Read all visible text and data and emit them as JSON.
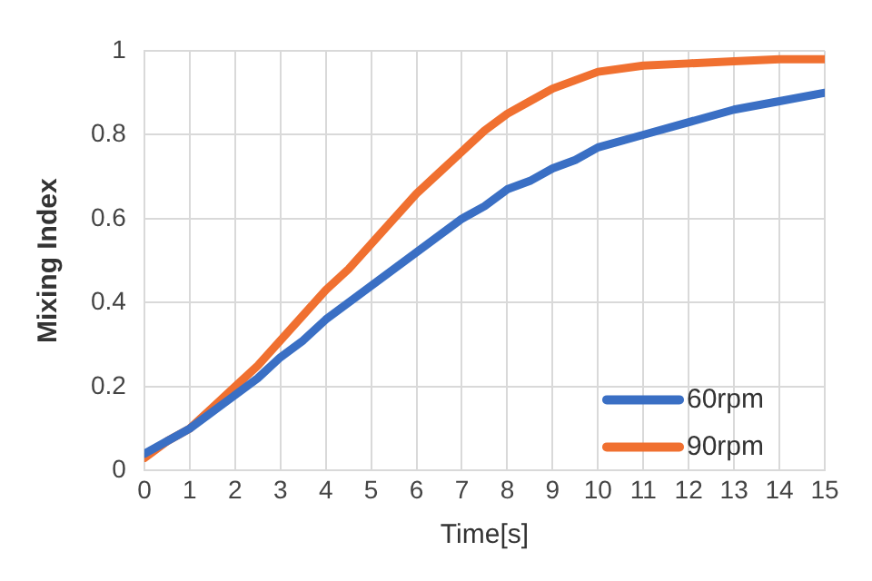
{
  "chart_data": {
    "type": "line",
    "xlabel": "Time[s]",
    "ylabel": "Mixing Index",
    "xlim": [
      0,
      15
    ],
    "xticks": [
      0,
      1,
      2,
      3,
      4,
      5,
      6,
      7,
      8,
      9,
      10,
      11,
      12,
      13,
      14,
      15
    ],
    "ylim": [
      0,
      1
    ],
    "yticks": [
      0,
      0.2,
      0.4,
      0.6,
      0.8,
      1
    ],
    "grid": true,
    "legend": "bottom right",
    "marker": "none",
    "line_style": "solid",
    "x": [
      0,
      0.5,
      1,
      1.5,
      2,
      2.5,
      3,
      3.5,
      4,
      4.5,
      5,
      5.5,
      6,
      6.5,
      7,
      7.5,
      8,
      8.5,
      9,
      9.5,
      10,
      11,
      12,
      13,
      14,
      15
    ],
    "series": [
      {
        "name": "60rpm",
        "color": "#3a6fc4",
        "values": [
          0.04,
          0.07,
          0.1,
          0.14,
          0.18,
          0.22,
          0.27,
          0.31,
          0.36,
          0.4,
          0.44,
          0.48,
          0.52,
          0.56,
          0.6,
          0.63,
          0.67,
          0.69,
          0.72,
          0.74,
          0.77,
          0.8,
          0.83,
          0.86,
          0.88,
          0.9
        ]
      },
      {
        "name": "90rpm",
        "color": "#f07030",
        "values": [
          0.03,
          0.07,
          0.1,
          0.15,
          0.2,
          0.25,
          0.31,
          0.37,
          0.43,
          0.48,
          0.54,
          0.6,
          0.66,
          0.71,
          0.76,
          0.81,
          0.85,
          0.88,
          0.91,
          0.93,
          0.95,
          0.965,
          0.97,
          0.975,
          0.98,
          0.98
        ]
      }
    ]
  }
}
